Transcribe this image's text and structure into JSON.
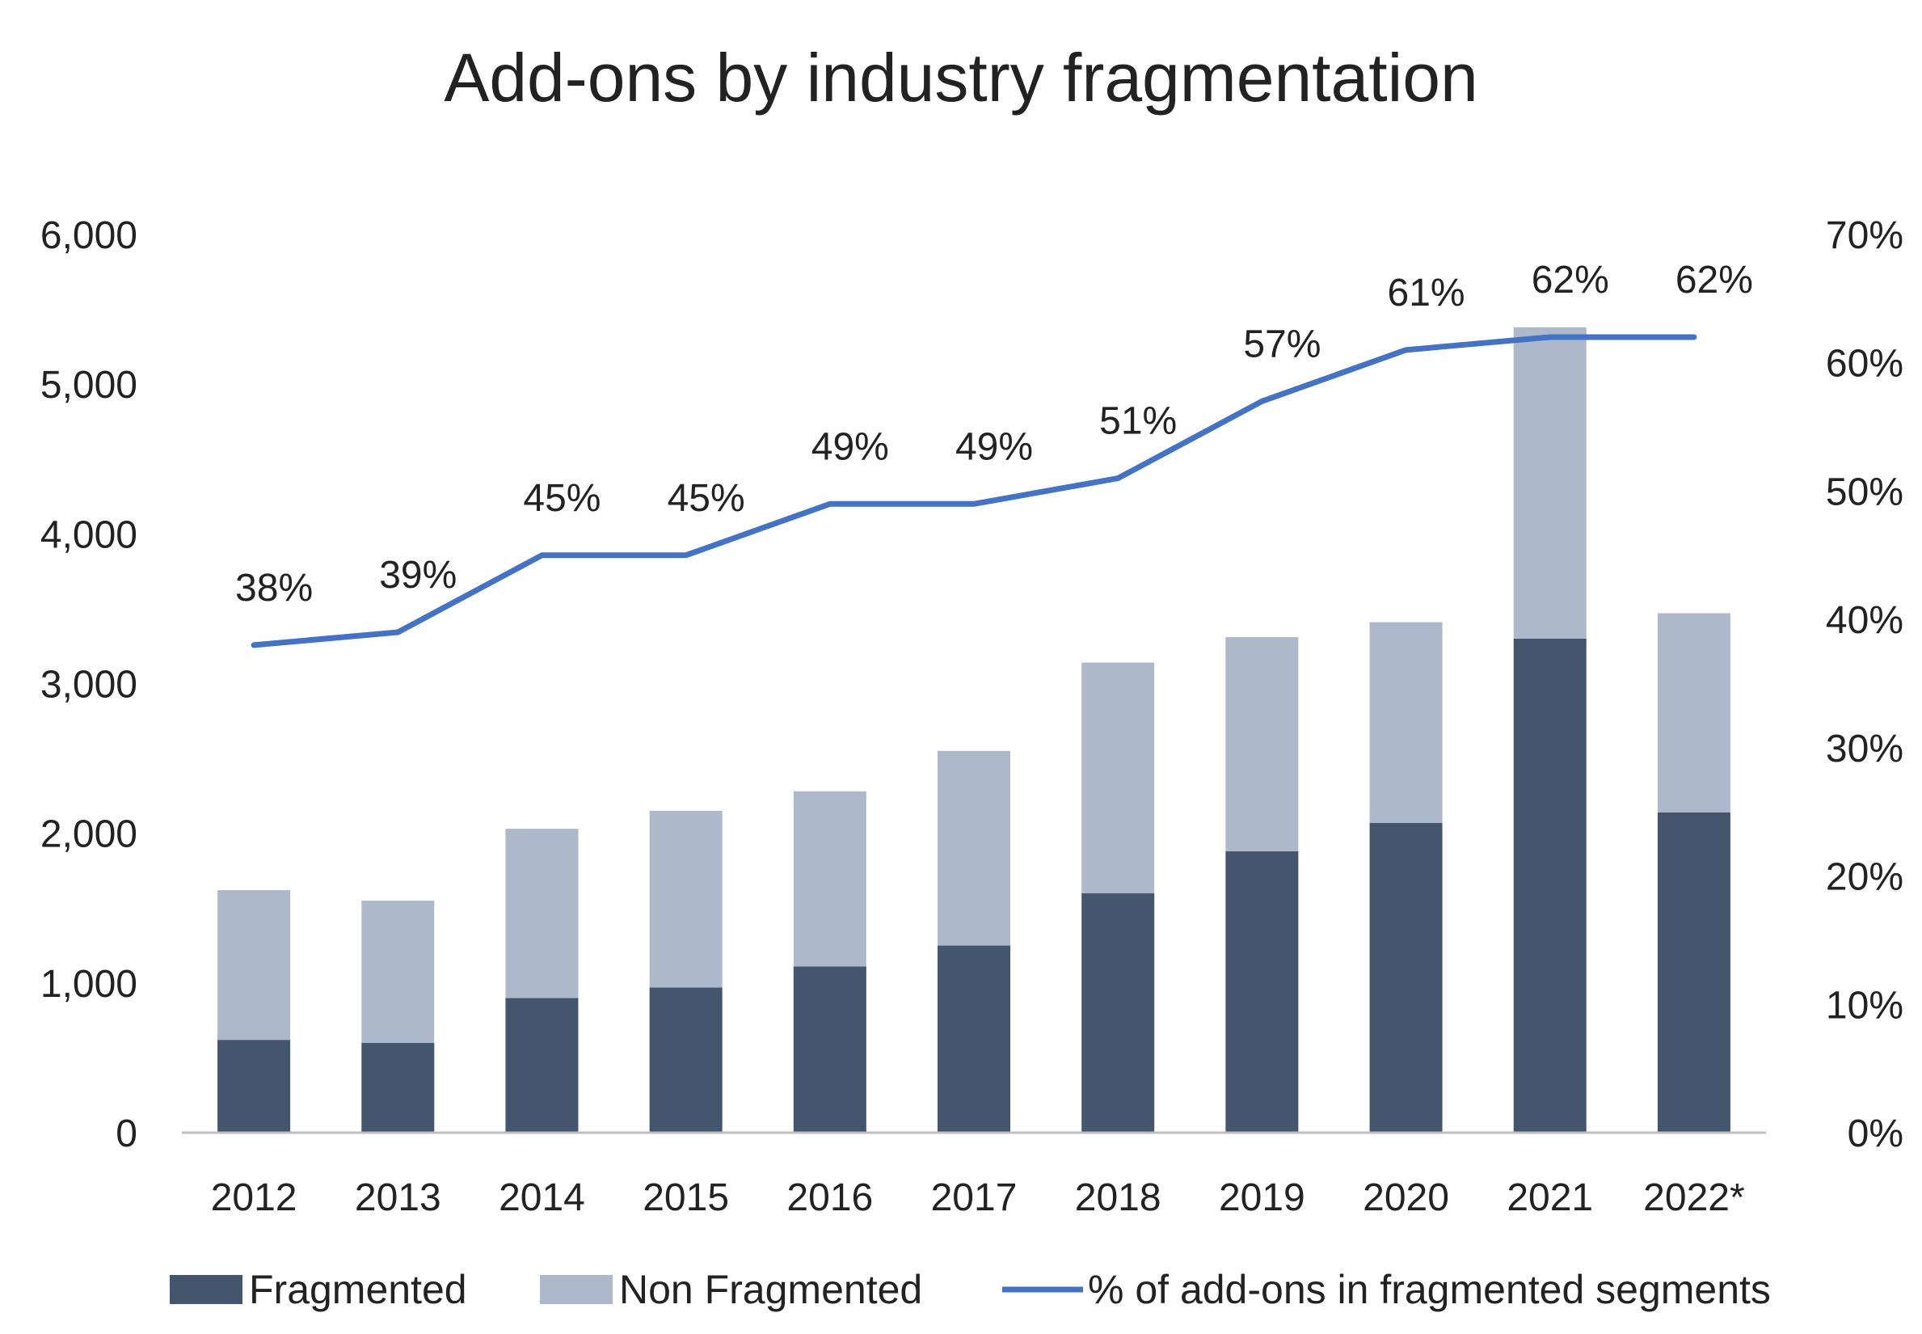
{
  "chart_data": {
    "type": "bar",
    "stacked": true,
    "title": "Add-ons by industry fragmentation",
    "categories": [
      "2012",
      "2013",
      "2014",
      "2015",
      "2016",
      "2017",
      "2018",
      "2019",
      "2020",
      "2021",
      "2022*"
    ],
    "series": [
      {
        "name": "Fragmented",
        "kind": "bar",
        "axis": "left",
        "color": "#44556e",
        "values": [
          620,
          600,
          900,
          970,
          1110,
          1250,
          1600,
          1880,
          2070,
          3300,
          2140
        ]
      },
      {
        "name": "Non Fragmented",
        "kind": "bar",
        "axis": "left",
        "color": "#adb8ca",
        "values": [
          1000,
          950,
          1130,
          1180,
          1170,
          1300,
          1540,
          1430,
          1340,
          2080,
          1330
        ]
      },
      {
        "name": "% of add-ons in fragmented segments",
        "kind": "line",
        "axis": "right",
        "color": "#4472c4",
        "values": [
          38,
          39,
          45,
          45,
          49,
          49,
          51,
          57,
          61,
          62,
          62
        ],
        "labels": [
          "38%",
          "39%",
          "45%",
          "45%",
          "49%",
          "49%",
          "51%",
          "57%",
          "61%",
          "62%",
          "62%"
        ]
      }
    ],
    "y_left": {
      "min": 0,
      "max": 6000,
      "ticks": [
        "0",
        "1,000",
        "2,000",
        "3,000",
        "4,000",
        "5,000",
        "6,000"
      ],
      "tick_values": [
        0,
        1000,
        2000,
        3000,
        4000,
        5000,
        6000
      ]
    },
    "y_right": {
      "min": 0,
      "max": 70,
      "ticks": [
        "0%",
        "10%",
        "20%",
        "30%",
        "40%",
        "50%",
        "60%",
        "70%"
      ],
      "tick_values": [
        0,
        10,
        20,
        30,
        40,
        50,
        60,
        70
      ]
    },
    "xlabel": "",
    "ylabel": "",
    "grid": false,
    "legend": "bottom"
  }
}
